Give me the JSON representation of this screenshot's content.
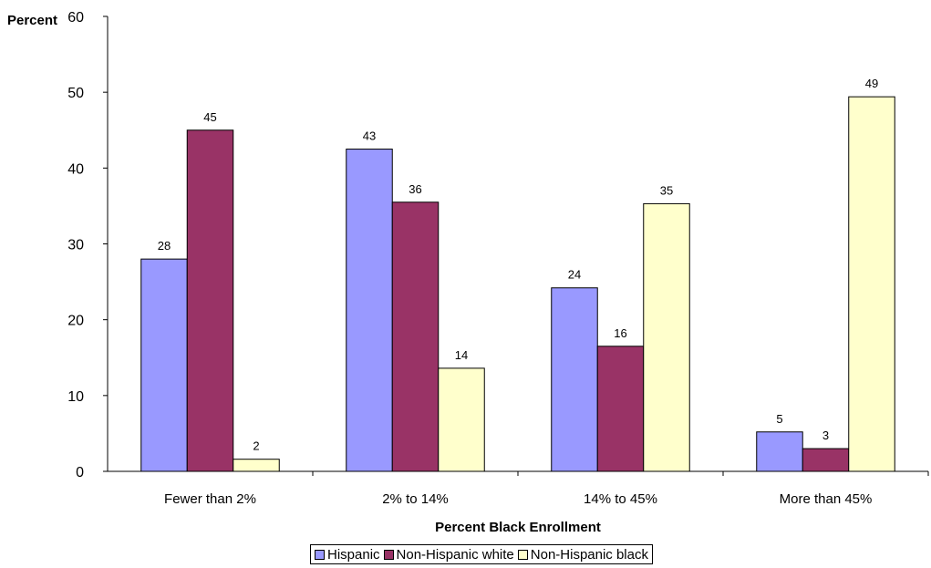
{
  "chart_data": {
    "type": "bar",
    "ylabel": "Percent",
    "xlabel": "Percent Black Enrollment",
    "ylim": [
      0,
      60
    ],
    "yticks": [
      0,
      10,
      20,
      30,
      40,
      50,
      60
    ],
    "categories": [
      "Fewer than 2%",
      "2% to 14%",
      "14% to 45%",
      "More than 45%"
    ],
    "series": [
      {
        "name": "Hispanic",
        "values": [
          28,
          42.5,
          24.2,
          5.2
        ],
        "labels": [
          "28",
          "43",
          "24",
          "5"
        ],
        "color": "#9999ff"
      },
      {
        "name": "Non-Hispanic white",
        "values": [
          45,
          35.5,
          16.5,
          3
        ],
        "labels": [
          "45",
          "36",
          "16",
          "3"
        ],
        "color": "#993366"
      },
      {
        "name": "Non-Hispanic black",
        "values": [
          1.6,
          13.6,
          35.3,
          49.4
        ],
        "labels": [
          "2",
          "14",
          "35",
          "49"
        ],
        "color": "#ffffcc"
      }
    ],
    "legend_position": "bottom",
    "grid": false
  }
}
